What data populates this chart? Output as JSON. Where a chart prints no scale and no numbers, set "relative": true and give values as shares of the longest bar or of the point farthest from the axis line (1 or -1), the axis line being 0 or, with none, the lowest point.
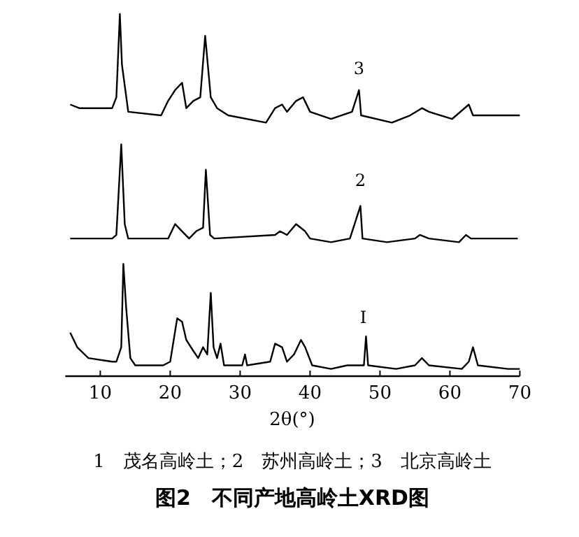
{
  "chart_data": {
    "type": "line",
    "relative": true,
    "xlim": [
      5,
      70
    ],
    "xticks": [
      10,
      20,
      30,
      40,
      50,
      60,
      70
    ],
    "tick_labels": "x",
    "xlabel": "2θ(°)",
    "title": "图2　不同产地高岭土XRD图",
    "annotations": [
      "3",
      "2",
      "I",
      "1　茂名高岭土；2　苏州高岭土；3　北京高岭土"
    ],
    "series": [
      {
        "color": "#000000",
        "x": [
          5.7,
          7,
          11.7,
          12.3,
          12.8,
          13.1,
          14,
          18.7,
          19.7,
          20.7,
          21.7,
          22.3,
          23.3,
          24.3,
          25,
          25.8,
          26.7,
          28.3,
          33.7,
          35,
          36,
          36.7,
          38,
          39,
          40,
          43,
          46,
          47,
          47.3,
          51.7,
          54.3,
          56,
          57,
          60.3,
          62.7,
          63.3,
          70
        ],
        "values": [
          0.75,
          0.74,
          0.74,
          0.77,
          1,
          0.86,
          0.73,
          0.72,
          0.76,
          0.79,
          0.81,
          0.74,
          0.76,
          0.77,
          0.94,
          0.77,
          0.74,
          0.72,
          0.7,
          0.74,
          0.75,
          0.73,
          0.76,
          0.77,
          0.73,
          0.71,
          0.73,
          0.79,
          0.72,
          0.7,
          0.72,
          0.74,
          0.73,
          0.71,
          0.75,
          0.72,
          0.72
        ]
      },
      {
        "color": "#000000",
        "x": [
          5.7,
          11.7,
          12.3,
          13,
          13.5,
          14,
          19.7,
          20.7,
          21.7,
          22.7,
          23.7,
          24.7,
          25.1,
          25.7,
          26.3,
          35,
          35.7,
          36.7,
          38,
          39.3,
          40,
          43,
          45.7,
          47.2,
          47.5,
          51,
          55,
          55.7,
          57,
          61.3,
          62.3,
          63,
          69.7
        ],
        "values": [
          0.38,
          0.38,
          0.39,
          0.64,
          0.42,
          0.38,
          0.38,
          0.42,
          0.4,
          0.38,
          0.4,
          0.41,
          0.57,
          0.39,
          0.38,
          0.39,
          0.4,
          0.39,
          0.42,
          0.4,
          0.38,
          0.37,
          0.38,
          0.47,
          0.38,
          0.37,
          0.38,
          0.39,
          0.38,
          0.37,
          0.39,
          0.38,
          0.38
        ]
      },
      {
        "color": "#000000",
        "x": [
          5.7,
          6.7,
          8.3,
          11.7,
          12.3,
          13,
          13.3,
          13.7,
          14.3,
          15,
          19,
          20,
          21,
          21.7,
          22.3,
          23.3,
          24,
          24.7,
          25.3,
          25.8,
          26.2,
          26.7,
          27.2,
          27.7,
          30.3,
          30.7,
          31,
          34.3,
          35,
          36,
          36.7,
          37.7,
          38.7,
          39.3,
          40.3,
          43,
          45.3,
          46.3,
          47.7,
          48,
          48.3,
          52.3,
          55,
          56,
          57,
          61.7,
          62.7,
          63.3,
          64,
          68.3,
          70
        ],
        "values": [
          0.12,
          0.08,
          0.05,
          0.04,
          0.04,
          0.08,
          0.31,
          0.19,
          0.05,
          0.03,
          0.03,
          0.04,
          0.16,
          0.15,
          0.1,
          0.07,
          0.05,
          0.08,
          0.06,
          0.23,
          0.08,
          0.05,
          0.09,
          0.03,
          0.03,
          0.06,
          0.03,
          0.04,
          0.09,
          0.08,
          0.04,
          0.06,
          0.1,
          0.08,
          0.03,
          0.02,
          0.03,
          0.03,
          0.03,
          0.11,
          0.03,
          0.02,
          0.03,
          0.05,
          0.03,
          0.02,
          0.04,
          0.08,
          0.03,
          0.02,
          0.02
        ]
      }
    ]
  }
}
